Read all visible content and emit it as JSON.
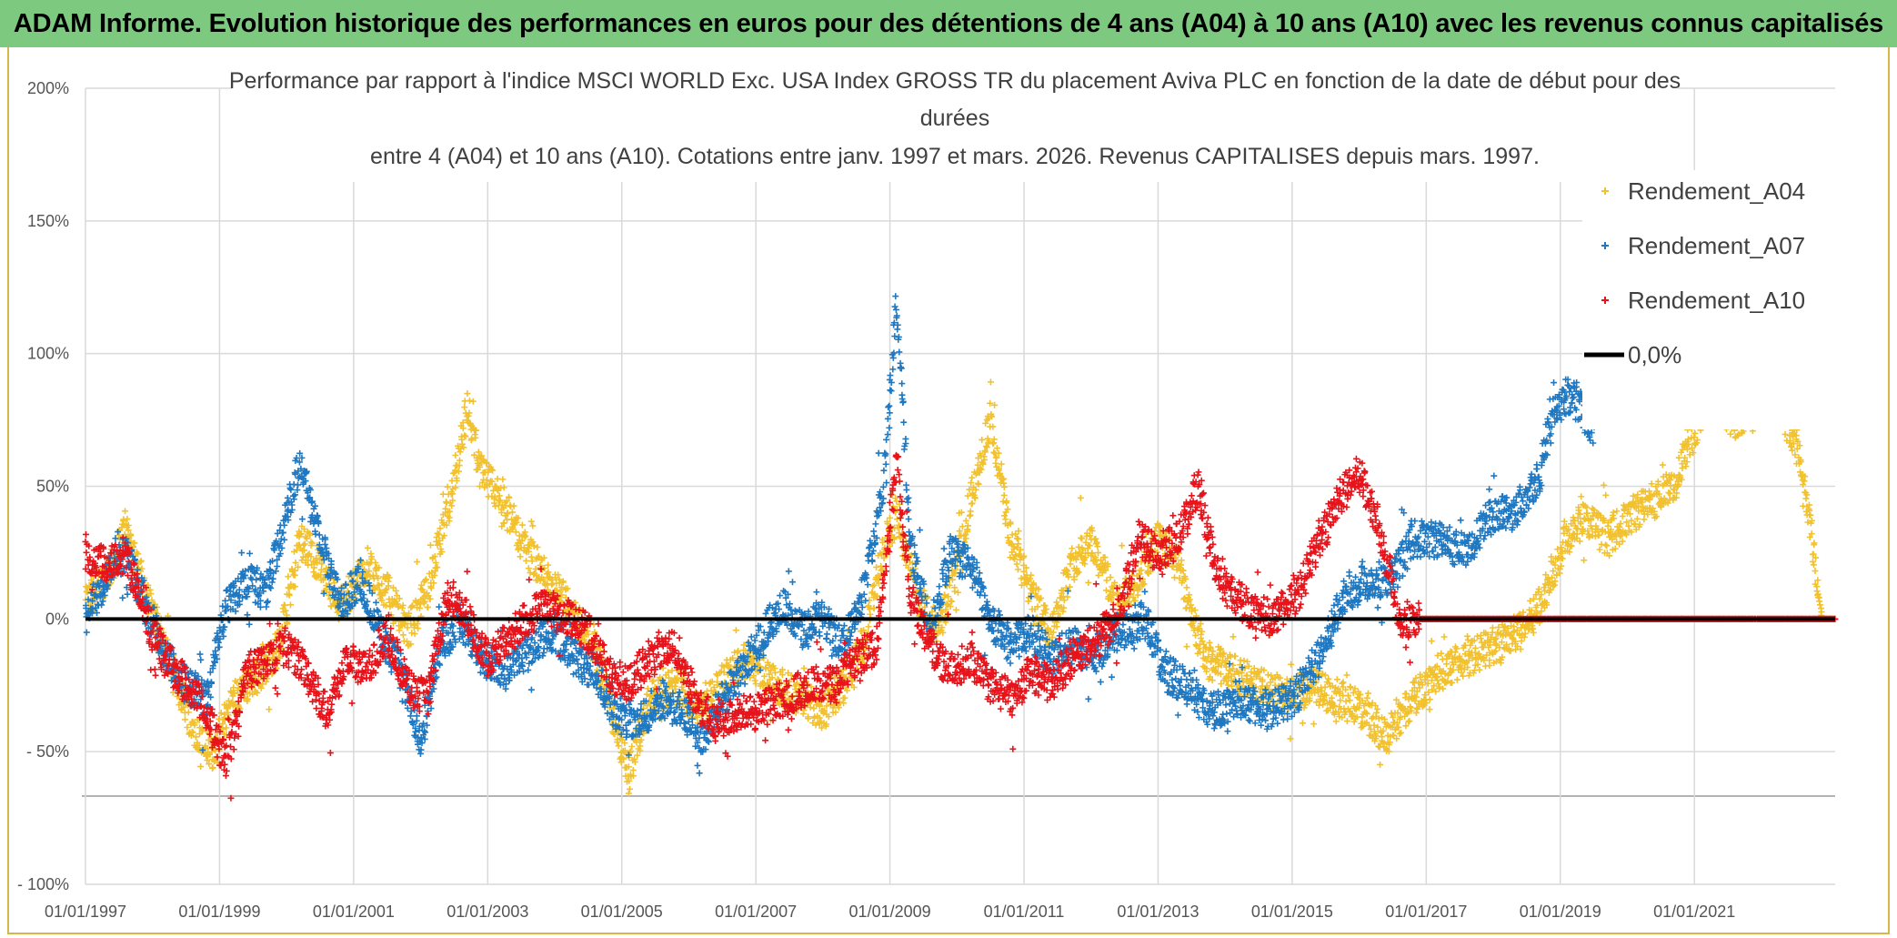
{
  "banner_title": "ADAM Informe. Evolution historique des performances en euros pour des détentions de 4 ans (A04) à 10 ans (A10) avec les revenus connus capitalisés",
  "colors": {
    "banner_bg": "#7dc97f",
    "a04": "#f2c12e",
    "a07": "#1f78c1",
    "a10": "#e8131a",
    "zero": "#000000",
    "grid": "#d9d9d9"
  },
  "chart_data": {
    "type": "scatter",
    "title_lines": [
      "Performance par rapport à l'indice MSCI WORLD Exc. USA Index GROSS TR  du placement Aviva PLC en fonction de la date de début pour des",
      "durées",
      "entre 4 (A04) et 10 ans (A10). Cotations entre janv. 1997 et mars. 2026. Revenus CAPITALISES depuis mars. 1997."
    ],
    "ylabel_ticks": [
      "200%",
      "150%",
      "100%",
      "50%",
      "0%",
      "- 50%",
      "- 100%"
    ],
    "y_tick_values": [
      200,
      150,
      100,
      50,
      0,
      -50,
      -100
    ],
    "ylim": [
      -100,
      200
    ],
    "x_ticks": [
      "01/01/1997",
      "01/01/1999",
      "01/01/2001",
      "01/01/2003",
      "01/01/2005",
      "01/01/2007",
      "01/01/2009",
      "01/01/2011",
      "01/01/2013",
      "01/01/2015",
      "01/01/2017",
      "01/01/2019",
      "01/01/2021"
    ],
    "x_tick_years": [
      1997,
      1999,
      2001,
      2003,
      2005,
      2007,
      2009,
      2011,
      2013,
      2015,
      2017,
      2019,
      2021
    ],
    "xlim": [
      1997.0,
      2023.1
    ],
    "legend": [
      {
        "name": "Rendement_A04",
        "color": "#f2c12e",
        "marker": "+"
      },
      {
        "name": "Rendement_A07",
        "color": "#1f78c1",
        "marker": "+"
      },
      {
        "name": "Rendement_A10",
        "color": "#e8131a",
        "marker": "+"
      },
      {
        "name": "0,0%",
        "color": "#000000",
        "marker": "line"
      }
    ],
    "zero_line": 0,
    "series": [
      {
        "name": "Rendement_A04",
        "color": "#f2c12e",
        "keypoints": [
          [
            1997.0,
            5
          ],
          [
            1997.4,
            20
          ],
          [
            1997.6,
            35
          ],
          [
            1997.9,
            10
          ],
          [
            1998.3,
            -20
          ],
          [
            1998.6,
            -40
          ],
          [
            1998.9,
            -50
          ],
          [
            1999.2,
            -30
          ],
          [
            1999.6,
            -20
          ],
          [
            1999.9,
            -10
          ],
          [
            2000.2,
            30
          ],
          [
            2000.5,
            20
          ],
          [
            2000.8,
            5
          ],
          [
            2001.2,
            20
          ],
          [
            2001.5,
            10
          ],
          [
            2001.8,
            -5
          ],
          [
            2002.1,
            10
          ],
          [
            2002.4,
            40
          ],
          [
            2002.7,
            80
          ],
          [
            2002.9,
            55
          ],
          [
            2003.2,
            45
          ],
          [
            2003.6,
            25
          ],
          [
            2003.9,
            15
          ],
          [
            2004.2,
            5
          ],
          [
            2004.6,
            -10
          ],
          [
            2004.9,
            -40
          ],
          [
            2005.1,
            -60
          ],
          [
            2005.4,
            -30
          ],
          [
            2005.8,
            -25
          ],
          [
            2006.2,
            -35
          ],
          [
            2006.6,
            -20
          ],
          [
            2006.9,
            -15
          ],
          [
            2007.3,
            -25
          ],
          [
            2007.7,
            -30
          ],
          [
            2008.0,
            -35
          ],
          [
            2008.3,
            -25
          ],
          [
            2008.6,
            -10
          ],
          [
            2008.9,
            25
          ],
          [
            2009.1,
            40
          ],
          [
            2009.4,
            10
          ],
          [
            2009.7,
            -5
          ],
          [
            2009.9,
            10
          ],
          [
            2010.2,
            45
          ],
          [
            2010.5,
            75
          ],
          [
            2010.8,
            30
          ],
          [
            2011.1,
            10
          ],
          [
            2011.4,
            -5
          ],
          [
            2011.7,
            20
          ],
          [
            2012.0,
            30
          ],
          [
            2012.4,
            5
          ],
          [
            2012.7,
            15
          ],
          [
            2013.0,
            30
          ],
          [
            2013.3,
            20
          ],
          [
            2013.7,
            -15
          ],
          [
            2014.1,
            -20
          ],
          [
            2014.5,
            -25
          ],
          [
            2014.9,
            -30
          ],
          [
            2015.3,
            -25
          ],
          [
            2015.7,
            -30
          ],
          [
            2016.1,
            -35
          ],
          [
            2016.4,
            -45
          ],
          [
            2016.8,
            -30
          ],
          [
            2017.2,
            -20
          ],
          [
            2017.6,
            -15
          ],
          [
            2018.0,
            -10
          ],
          [
            2018.4,
            -5
          ],
          [
            2018.7,
            5
          ],
          [
            2019.0,
            25
          ],
          [
            2019.3,
            40
          ],
          [
            2019.7,
            30
          ],
          [
            2020.1,
            40
          ],
          [
            2020.4,
            45
          ],
          [
            2020.7,
            50
          ],
          [
            2021.2,
            85
          ],
          [
            2021.6,
            75
          ],
          [
            2021.9,
            80
          ],
          [
            2022.2,
            85
          ],
          [
            2022.6,
            60
          ],
          [
            2022.9,
            0
          ],
          [
            2023.1,
            0
          ]
        ]
      },
      {
        "name": "Rendement_A07",
        "color": "#1f78c1",
        "keypoints": [
          [
            1997.0,
            0
          ],
          [
            1997.3,
            15
          ],
          [
            1997.6,
            25
          ],
          [
            1997.9,
            5
          ],
          [
            1998.2,
            -15
          ],
          [
            1998.5,
            -25
          ],
          [
            1998.8,
            -30
          ],
          [
            1999.1,
            5
          ],
          [
            1999.4,
            15
          ],
          [
            1999.7,
            10
          ],
          [
            2000.0,
            40
          ],
          [
            2000.2,
            60
          ],
          [
            2000.5,
            30
          ],
          [
            2000.8,
            5
          ],
          [
            2001.1,
            15
          ],
          [
            2001.4,
            -5
          ],
          [
            2001.7,
            -20
          ],
          [
            2002.0,
            -45
          ],
          [
            2002.3,
            -10
          ],
          [
            2002.6,
            0
          ],
          [
            2002.9,
            -15
          ],
          [
            2003.3,
            -20
          ],
          [
            2003.7,
            -10
          ],
          [
            2004.0,
            -5
          ],
          [
            2004.3,
            -15
          ],
          [
            2004.6,
            -20
          ],
          [
            2004.9,
            -35
          ],
          [
            2005.2,
            -40
          ],
          [
            2005.6,
            -30
          ],
          [
            2005.9,
            -35
          ],
          [
            2006.2,
            -45
          ],
          [
            2006.5,
            -30
          ],
          [
            2006.8,
            -20
          ],
          [
            2007.1,
            -5
          ],
          [
            2007.4,
            5
          ],
          [
            2007.7,
            -5
          ],
          [
            2008.0,
            0
          ],
          [
            2008.3,
            -10
          ],
          [
            2008.6,
            10
          ],
          [
            2008.9,
            50
          ],
          [
            2009.1,
            120
          ],
          [
            2009.3,
            30
          ],
          [
            2009.6,
            -5
          ],
          [
            2009.9,
            25
          ],
          [
            2010.2,
            20
          ],
          [
            2010.5,
            0
          ],
          [
            2010.8,
            -10
          ],
          [
            2011.1,
            -5
          ],
          [
            2011.4,
            -15
          ],
          [
            2011.7,
            -10
          ],
          [
            2012.0,
            -15
          ],
          [
            2012.4,
            -5
          ],
          [
            2012.8,
            0
          ],
          [
            2013.1,
            -20
          ],
          [
            2013.4,
            -25
          ],
          [
            2013.8,
            -35
          ],
          [
            2014.2,
            -30
          ],
          [
            2014.6,
            -35
          ],
          [
            2015.0,
            -30
          ],
          [
            2015.4,
            -15
          ],
          [
            2015.8,
            10
          ],
          [
            2016.2,
            15
          ],
          [
            2016.5,
            15
          ],
          [
            2016.8,
            30
          ],
          [
            2017.2,
            30
          ],
          [
            2017.6,
            25
          ],
          [
            2018.0,
            40
          ],
          [
            2018.3,
            40
          ],
          [
            2018.7,
            55
          ],
          [
            2018.9,
            80
          ],
          [
            2019.2,
            85
          ],
          [
            2019.5,
            70
          ]
        ]
      },
      {
        "name": "Rendement_A10",
        "color": "#e8131a",
        "keypoints": [
          [
            1997.0,
            25
          ],
          [
            1997.3,
            20
          ],
          [
            1997.6,
            25
          ],
          [
            1997.9,
            0
          ],
          [
            1998.2,
            -15
          ],
          [
            1998.5,
            -25
          ],
          [
            1998.8,
            -35
          ],
          [
            1999.1,
            -55
          ],
          [
            1999.4,
            -20
          ],
          [
            1999.7,
            -15
          ],
          [
            2000.0,
            -10
          ],
          [
            2000.3,
            -20
          ],
          [
            2000.6,
            -35
          ],
          [
            2000.9,
            -15
          ],
          [
            2001.2,
            -20
          ],
          [
            2001.5,
            -5
          ],
          [
            2001.8,
            -25
          ],
          [
            2002.1,
            -30
          ],
          [
            2002.4,
            10
          ],
          [
            2002.7,
            0
          ],
          [
            2003.0,
            -15
          ],
          [
            2003.4,
            -5
          ],
          [
            2003.8,
            5
          ],
          [
            2004.2,
            0
          ],
          [
            2004.5,
            -5
          ],
          [
            2004.8,
            -20
          ],
          [
            2005.1,
            -25
          ],
          [
            2005.4,
            -15
          ],
          [
            2005.8,
            -10
          ],
          [
            2006.1,
            -30
          ],
          [
            2006.4,
            -40
          ],
          [
            2006.7,
            -35
          ],
          [
            2007.0,
            -35
          ],
          [
            2007.4,
            -30
          ],
          [
            2007.8,
            -25
          ],
          [
            2008.2,
            -25
          ],
          [
            2008.5,
            -15
          ],
          [
            2008.8,
            -10
          ],
          [
            2009.1,
            60
          ],
          [
            2009.3,
            10
          ],
          [
            2009.6,
            -10
          ],
          [
            2009.9,
            -20
          ],
          [
            2010.2,
            -15
          ],
          [
            2010.5,
            -25
          ],
          [
            2010.8,
            -30
          ],
          [
            2011.1,
            -20
          ],
          [
            2011.4,
            -25
          ],
          [
            2011.7,
            -15
          ],
          [
            2012.0,
            -10
          ],
          [
            2012.4,
            0
          ],
          [
            2012.7,
            30
          ],
          [
            2013.0,
            25
          ],
          [
            2013.3,
            30
          ],
          [
            2013.6,
            50
          ],
          [
            2013.9,
            15
          ],
          [
            2014.3,
            5
          ],
          [
            2014.7,
            0
          ],
          [
            2015.1,
            10
          ],
          [
            2015.4,
            30
          ],
          [
            2015.7,
            45
          ],
          [
            2016.0,
            55
          ],
          [
            2016.3,
            35
          ],
          [
            2016.6,
            0
          ],
          [
            2017.0,
            0
          ],
          [
            2023.1,
            0
          ]
        ]
      }
    ]
  }
}
